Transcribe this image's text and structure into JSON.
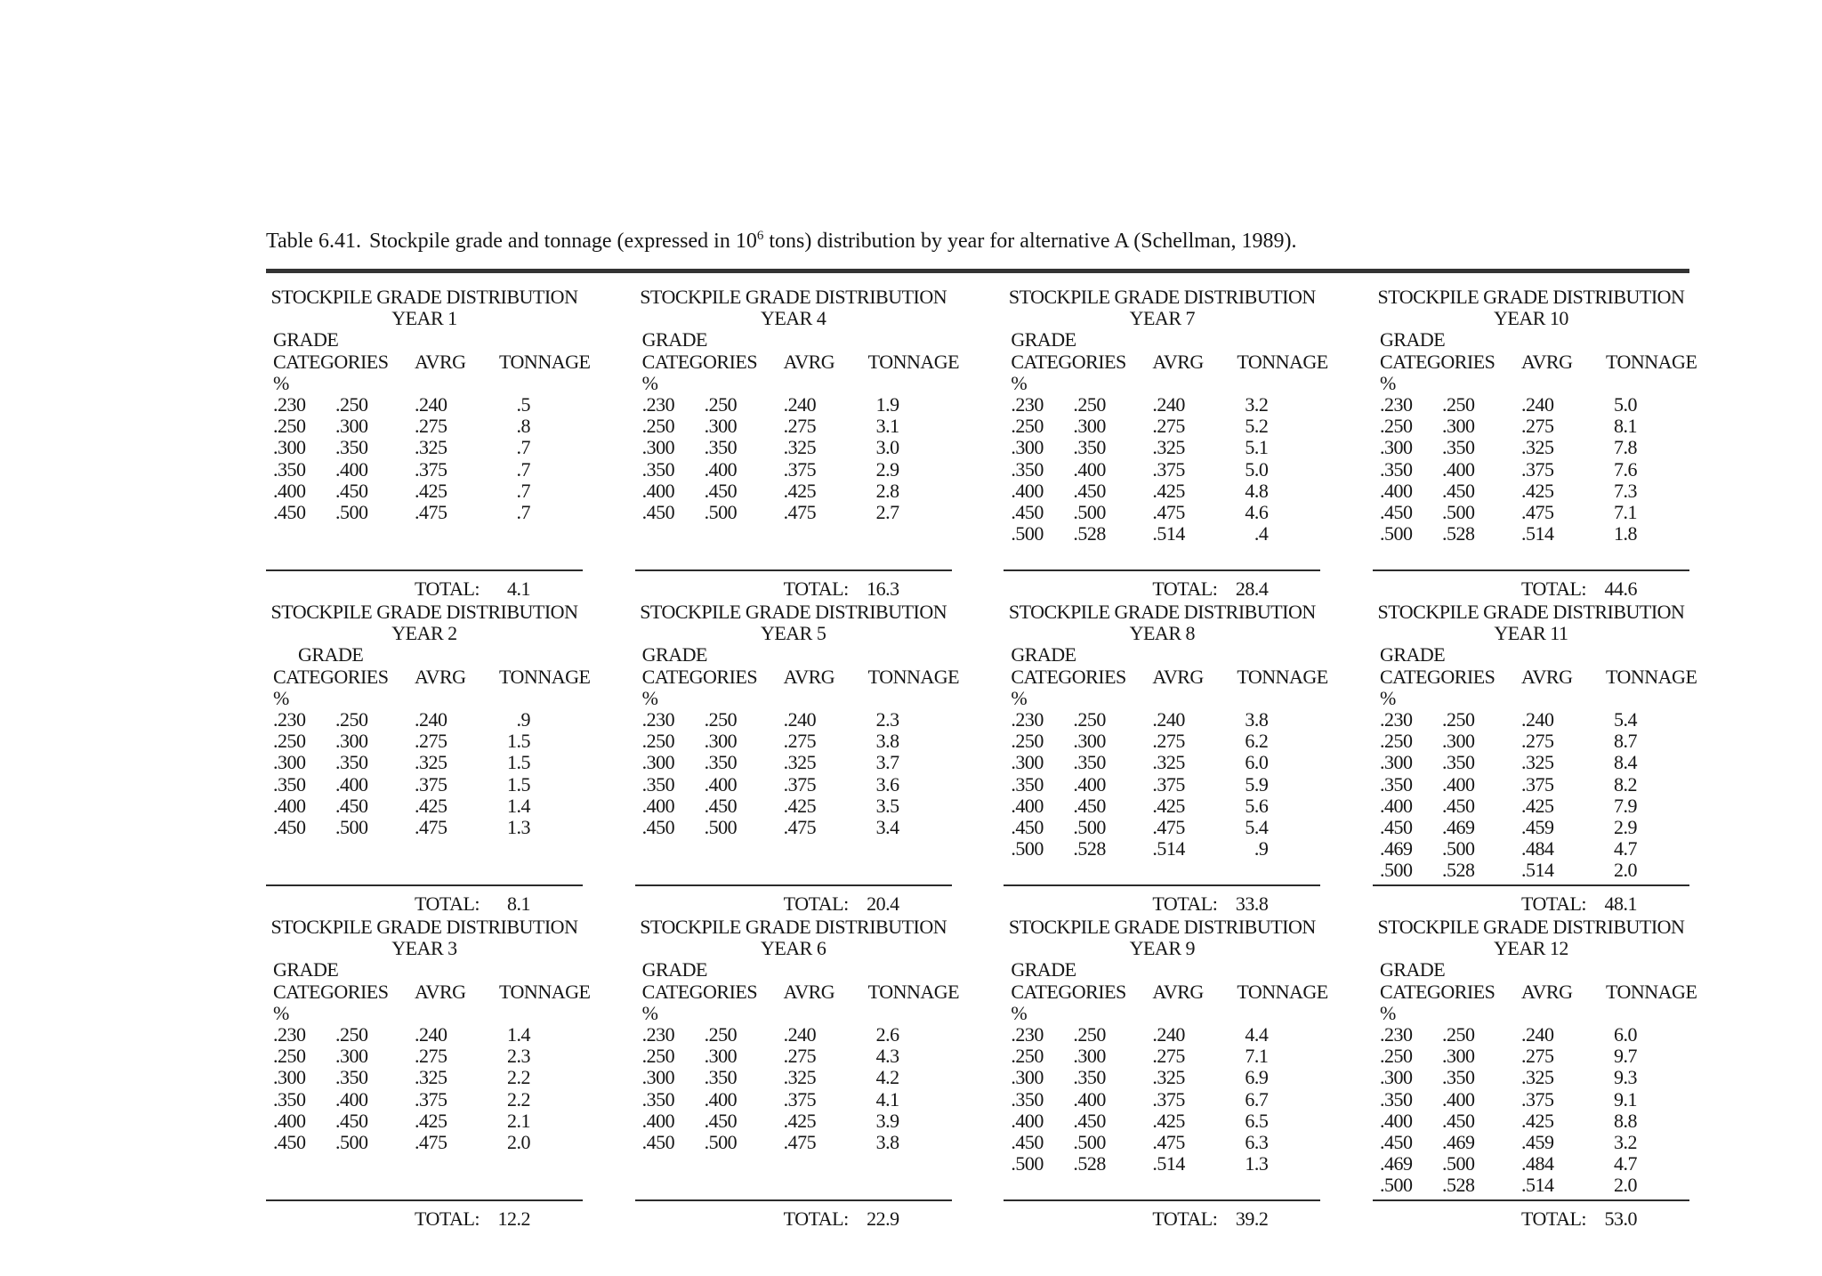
{
  "caption": {
    "prefix": "Table 6.41.",
    "body_before_sup": "Stockpile grade and tonnage (expressed in 10",
    "superscript": "6",
    "body_after_sup": " tons) distribution by year for alternative A (Schellman, 1989)."
  },
  "table_header": {
    "title_line": "STOCKPILE GRADE DISTRIBUTION",
    "year_prefix": "YEAR",
    "grade_label": "GRADE",
    "categories_label": "CATEGORIES",
    "percent_label": "%",
    "avrg_label": "AVRG",
    "tonnage_label": "TONNAGE",
    "total_label": "TOTAL:"
  },
  "chart_data": {
    "type": "table",
    "note": "Grid of 12 yearly stockpile grade distribution tables, columns: grade low, grade high, average grade, tonnage"
  },
  "years": [
    {
      "year": "1",
      "grade_indent": false,
      "rows": [
        [
          ".230",
          ".250",
          ".240",
          ".5"
        ],
        [
          ".250",
          ".300",
          ".275",
          ".8"
        ],
        [
          ".300",
          ".350",
          ".325",
          ".7"
        ],
        [
          ".350",
          ".400",
          ".375",
          ".7"
        ],
        [
          ".400",
          ".450",
          ".425",
          ".7"
        ],
        [
          ".450",
          ".500",
          ".475",
          ".7"
        ]
      ],
      "total": "4.1"
    },
    {
      "year": "2",
      "grade_indent": true,
      "rows": [
        [
          ".230",
          ".250",
          ".240",
          ".9"
        ],
        [
          ".250",
          ".300",
          ".275",
          "1.5"
        ],
        [
          ".300",
          ".350",
          ".325",
          "1.5"
        ],
        [
          ".350",
          ".400",
          ".375",
          "1.5"
        ],
        [
          ".400",
          ".450",
          ".425",
          "1.4"
        ],
        [
          ".450",
          ".500",
          ".475",
          "1.3"
        ]
      ],
      "total": "8.1"
    },
    {
      "year": "3",
      "grade_indent": false,
      "rows": [
        [
          ".230",
          ".250",
          ".240",
          "1.4"
        ],
        [
          ".250",
          ".300",
          ".275",
          "2.3"
        ],
        [
          ".300",
          ".350",
          ".325",
          "2.2"
        ],
        [
          ".350",
          ".400",
          ".375",
          "2.2"
        ],
        [
          ".400",
          ".450",
          ".425",
          "2.1"
        ],
        [
          ".450",
          ".500",
          ".475",
          "2.0"
        ]
      ],
      "total": "12.2"
    },
    {
      "year": "4",
      "grade_indent": false,
      "rows": [
        [
          ".230",
          ".250",
          ".240",
          "1.9"
        ],
        [
          ".250",
          ".300",
          ".275",
          "3.1"
        ],
        [
          ".300",
          ".350",
          ".325",
          "3.0"
        ],
        [
          ".350",
          ".400",
          ".375",
          "2.9"
        ],
        [
          ".400",
          ".450",
          ".425",
          "2.8"
        ],
        [
          ".450",
          ".500",
          ".475",
          "2.7"
        ]
      ],
      "total": "16.3"
    },
    {
      "year": "5",
      "grade_indent": false,
      "rows": [
        [
          ".230",
          ".250",
          ".240",
          "2.3"
        ],
        [
          ".250",
          ".300",
          ".275",
          "3.8"
        ],
        [
          ".300",
          ".350",
          ".325",
          "3.7"
        ],
        [
          ".350",
          ".400",
          ".375",
          "3.6"
        ],
        [
          ".400",
          ".450",
          ".425",
          "3.5"
        ],
        [
          ".450",
          ".500",
          ".475",
          "3.4"
        ]
      ],
      "total": "20.4"
    },
    {
      "year": "6",
      "grade_indent": false,
      "rows": [
        [
          ".230",
          ".250",
          ".240",
          "2.6"
        ],
        [
          ".250",
          ".300",
          ".275",
          "4.3"
        ],
        [
          ".300",
          ".350",
          ".325",
          "4.2"
        ],
        [
          ".350",
          ".400",
          ".375",
          "4.1"
        ],
        [
          ".400",
          ".450",
          ".425",
          "3.9"
        ],
        [
          ".450",
          ".500",
          ".475",
          "3.8"
        ]
      ],
      "total": "22.9"
    },
    {
      "year": "7",
      "grade_indent": false,
      "rows": [
        [
          ".230",
          ".250",
          ".240",
          "3.2"
        ],
        [
          ".250",
          ".300",
          ".275",
          "5.2"
        ],
        [
          ".300",
          ".350",
          ".325",
          "5.1"
        ],
        [
          ".350",
          ".400",
          ".375",
          "5.0"
        ],
        [
          ".400",
          ".450",
          ".425",
          "4.8"
        ],
        [
          ".450",
          ".500",
          ".475",
          "4.6"
        ],
        [
          ".500",
          ".528",
          ".514",
          ".4"
        ]
      ],
      "total": "28.4"
    },
    {
      "year": "8",
      "grade_indent": false,
      "rows": [
        [
          ".230",
          ".250",
          ".240",
          "3.8"
        ],
        [
          ".250",
          ".300",
          ".275",
          "6.2"
        ],
        [
          ".300",
          ".350",
          ".325",
          "6.0"
        ],
        [
          ".350",
          ".400",
          ".375",
          "5.9"
        ],
        [
          ".400",
          ".450",
          ".425",
          "5.6"
        ],
        [
          ".450",
          ".500",
          ".475",
          "5.4"
        ],
        [
          ".500",
          ".528",
          ".514",
          ".9"
        ]
      ],
      "total": "33.8"
    },
    {
      "year": "9",
      "grade_indent": false,
      "rows": [
        [
          ".230",
          ".250",
          ".240",
          "4.4"
        ],
        [
          ".250",
          ".300",
          ".275",
          "7.1"
        ],
        [
          ".300",
          ".350",
          ".325",
          "6.9"
        ],
        [
          ".350",
          ".400",
          ".375",
          "6.7"
        ],
        [
          ".400",
          ".450",
          ".425",
          "6.5"
        ],
        [
          ".450",
          ".500",
          ".475",
          "6.3"
        ],
        [
          ".500",
          ".528",
          ".514",
          "1.3"
        ]
      ],
      "total": "39.2"
    },
    {
      "year": "10",
      "grade_indent": false,
      "rows": [
        [
          ".230",
          ".250",
          ".240",
          "5.0"
        ],
        [
          ".250",
          ".300",
          ".275",
          "8.1"
        ],
        [
          ".300",
          ".350",
          ".325",
          "7.8"
        ],
        [
          ".350",
          ".400",
          ".375",
          "7.6"
        ],
        [
          ".400",
          ".450",
          ".425",
          "7.3"
        ],
        [
          ".450",
          ".500",
          ".475",
          "7.1"
        ],
        [
          ".500",
          ".528",
          ".514",
          "1.8"
        ]
      ],
      "total": "44.6"
    },
    {
      "year": "11",
      "grade_indent": false,
      "rows": [
        [
          ".230",
          ".250",
          ".240",
          "5.4"
        ],
        [
          ".250",
          ".300",
          ".275",
          "8.7"
        ],
        [
          ".300",
          ".350",
          ".325",
          "8.4"
        ],
        [
          ".350",
          ".400",
          ".375",
          "8.2"
        ],
        [
          ".400",
          ".450",
          ".425",
          "7.9"
        ],
        [
          ".450",
          ".469",
          ".459",
          "2.9"
        ],
        [
          ".469",
          ".500",
          ".484",
          "4.7"
        ],
        [
          ".500",
          ".528",
          ".514",
          "2.0"
        ]
      ],
      "total": "48.1"
    },
    {
      "year": "12",
      "grade_indent": false,
      "rows": [
        [
          ".230",
          ".250",
          ".240",
          "6.0"
        ],
        [
          ".250",
          ".300",
          ".275",
          "9.7"
        ],
        [
          ".300",
          ".350",
          ".325",
          "9.3"
        ],
        [
          ".350",
          ".400",
          ".375",
          "9.1"
        ],
        [
          ".400",
          ".450",
          ".425",
          "8.8"
        ],
        [
          ".450",
          ".469",
          ".459",
          "3.2"
        ],
        [
          ".469",
          ".500",
          ".484",
          "4.7"
        ],
        [
          ".500",
          ".528",
          ".514",
          "2.0"
        ]
      ],
      "total": "53.0"
    }
  ]
}
